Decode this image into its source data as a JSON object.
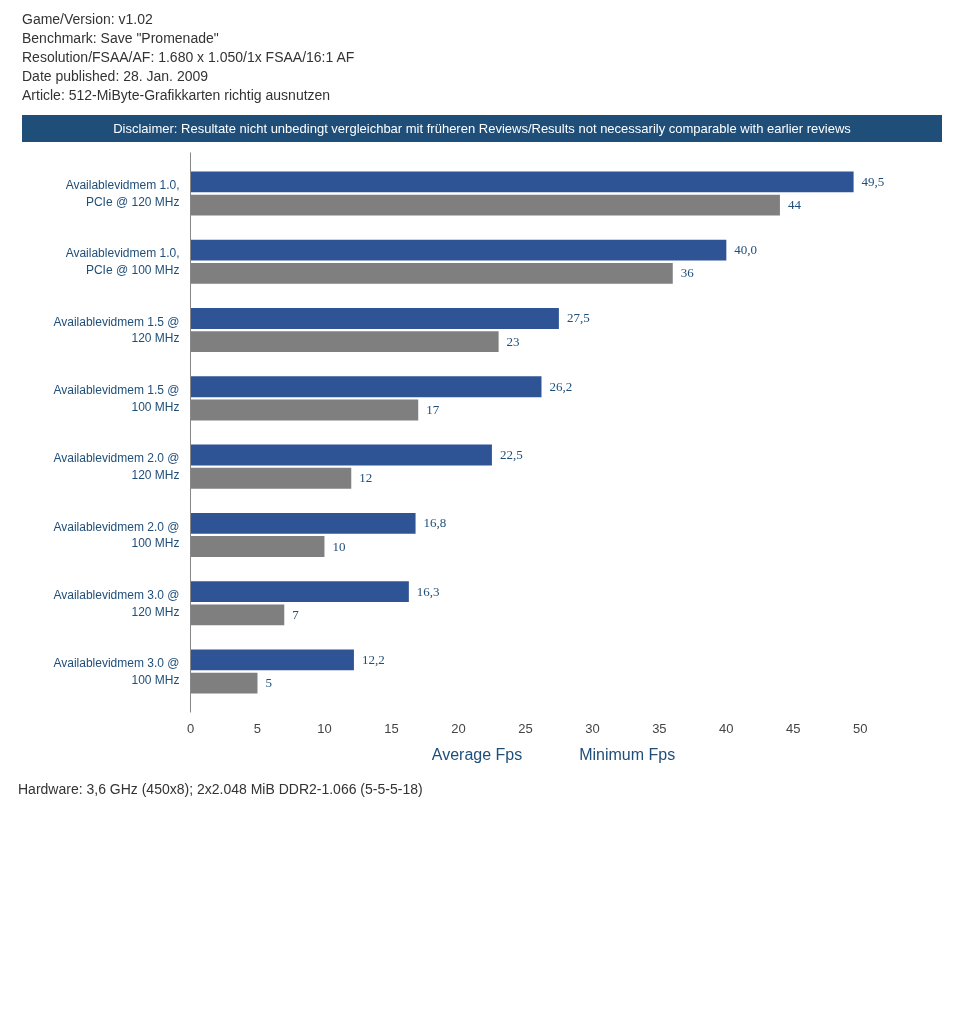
{
  "chart_data": {
    "type": "bar",
    "orientation": "horizontal",
    "subtitle": "Disclaimer: Resultate nicht unbedingt vergleichbar mit früheren Reviews/Results not necessarily comparable with earlier reviews",
    "annotations": [
      "Game/Version: v1.02",
      "Benchmark: Save \"Promenade\"",
      "Resolution/FSAA/AF: 1.680 x 1.050/1x FSAA/16:1 AF",
      "Date published: 28. Jan. 2009",
      "Article: 512-MiByte-Grafikkarten richtig ausnutzen",
      "Hardware: 3,6 GHz (450x8); 2x2.048 MiB DDR2-1.066 (5-5-5-18)"
    ],
    "categories": [
      "Availablevidmem 1.0, PCIe @ 120 MHz",
      "Availablevidmem 1.0, PCIe @ 100 MHz",
      "Availablevidmem 1.5 @ 120 MHz",
      "Availablevidmem 1.5 @ 100 MHz",
      "Availablevidmem 2.0 @ 120 MHz",
      "Availablevidmem 2.0 @ 100 MHz",
      "Availablevidmem 3.0 @ 120 MHz",
      "Availablevidmem 3.0 @ 100 MHz"
    ],
    "series": [
      {
        "name": "Average Fps",
        "color": "#2f5496",
        "values": [
          49.5,
          40.0,
          27.5,
          26.2,
          22.5,
          16.8,
          16.3,
          12.2
        ],
        "value_labels": [
          "49,5",
          "40,0",
          "27,5",
          "26,2",
          "22,5",
          "16,8",
          "16,3",
          "12,2"
        ]
      },
      {
        "name": "Minimum Fps",
        "color": "#7f7f7f",
        "values": [
          44,
          36,
          23,
          17,
          12,
          10,
          7,
          5
        ],
        "value_labels": [
          "44",
          "36",
          "23",
          "17",
          "12",
          "10",
          "7",
          "5"
        ]
      }
    ],
    "xlim": [
      0,
      50
    ],
    "xticks": [
      0,
      5,
      10,
      15,
      20,
      25,
      30,
      35,
      40,
      45,
      50
    ],
    "grid": false,
    "legend": "bottom"
  }
}
